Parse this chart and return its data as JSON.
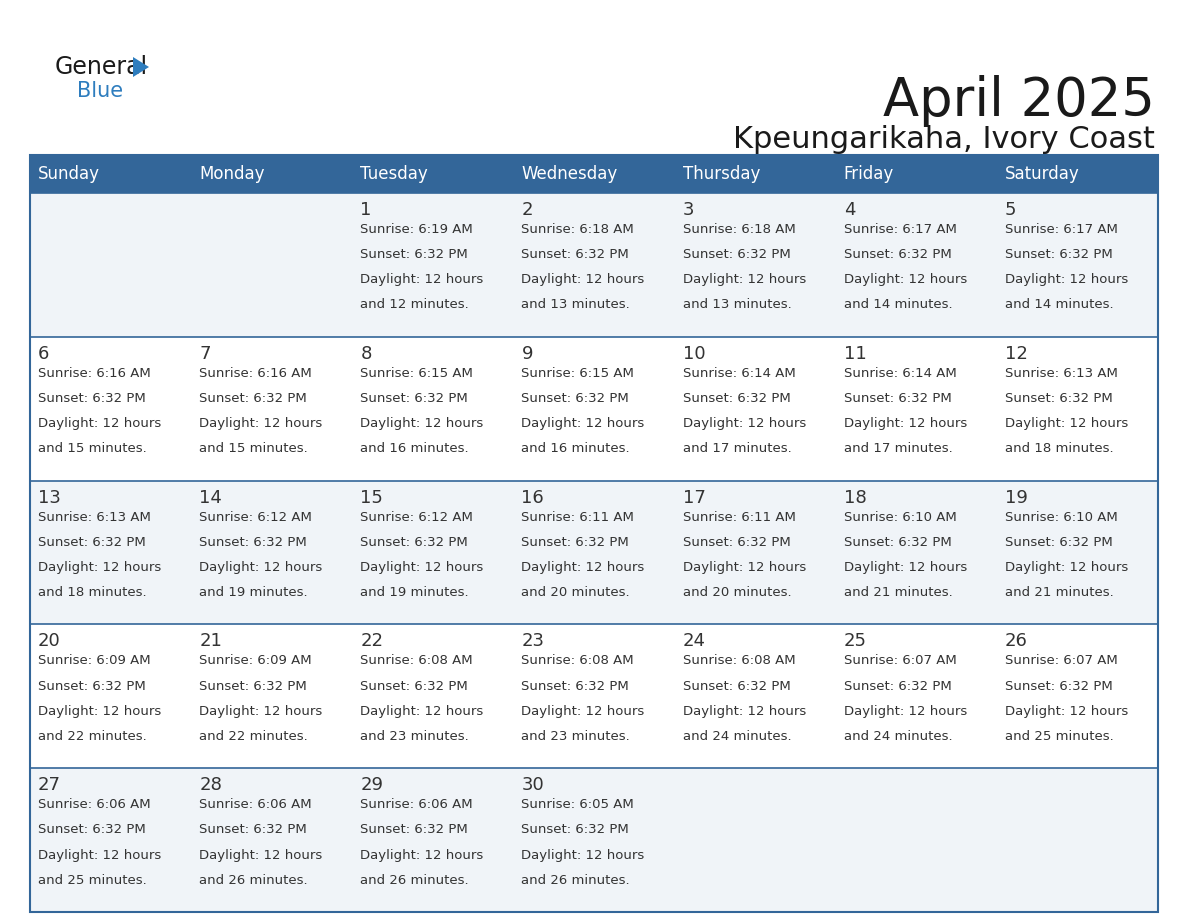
{
  "title": "April 2025",
  "subtitle": "Kpeungarikaha, Ivory Coast",
  "header_bg": "#336699",
  "header_text": "#FFFFFF",
  "day_names": [
    "Sunday",
    "Monday",
    "Tuesday",
    "Wednesday",
    "Thursday",
    "Friday",
    "Saturday"
  ],
  "cell_bg_odd": "#F0F4F8",
  "cell_bg_even": "#FFFFFF",
  "grid_line_color": "#336699",
  "text_color": "#333333",
  "title_color": "#1a1a1a",
  "logo_text_color": "#1a1a1a",
  "logo_blue_color": "#2E7DBE",
  "calendar": [
    [
      null,
      null,
      {
        "day": 1,
        "sunrise": "6:19 AM",
        "sunset": "6:32 PM",
        "daylight": "12 hours and 12 minutes."
      },
      {
        "day": 2,
        "sunrise": "6:18 AM",
        "sunset": "6:32 PM",
        "daylight": "12 hours and 13 minutes."
      },
      {
        "day": 3,
        "sunrise": "6:18 AM",
        "sunset": "6:32 PM",
        "daylight": "12 hours and 13 minutes."
      },
      {
        "day": 4,
        "sunrise": "6:17 AM",
        "sunset": "6:32 PM",
        "daylight": "12 hours and 14 minutes."
      },
      {
        "day": 5,
        "sunrise": "6:17 AM",
        "sunset": "6:32 PM",
        "daylight": "12 hours and 14 minutes."
      }
    ],
    [
      {
        "day": 6,
        "sunrise": "6:16 AM",
        "sunset": "6:32 PM",
        "daylight": "12 hours and 15 minutes."
      },
      {
        "day": 7,
        "sunrise": "6:16 AM",
        "sunset": "6:32 PM",
        "daylight": "12 hours and 15 minutes."
      },
      {
        "day": 8,
        "sunrise": "6:15 AM",
        "sunset": "6:32 PM",
        "daylight": "12 hours and 16 minutes."
      },
      {
        "day": 9,
        "sunrise": "6:15 AM",
        "sunset": "6:32 PM",
        "daylight": "12 hours and 16 minutes."
      },
      {
        "day": 10,
        "sunrise": "6:14 AM",
        "sunset": "6:32 PM",
        "daylight": "12 hours and 17 minutes."
      },
      {
        "day": 11,
        "sunrise": "6:14 AM",
        "sunset": "6:32 PM",
        "daylight": "12 hours and 17 minutes."
      },
      {
        "day": 12,
        "sunrise": "6:13 AM",
        "sunset": "6:32 PM",
        "daylight": "12 hours and 18 minutes."
      }
    ],
    [
      {
        "day": 13,
        "sunrise": "6:13 AM",
        "sunset": "6:32 PM",
        "daylight": "12 hours and 18 minutes."
      },
      {
        "day": 14,
        "sunrise": "6:12 AM",
        "sunset": "6:32 PM",
        "daylight": "12 hours and 19 minutes."
      },
      {
        "day": 15,
        "sunrise": "6:12 AM",
        "sunset": "6:32 PM",
        "daylight": "12 hours and 19 minutes."
      },
      {
        "day": 16,
        "sunrise": "6:11 AM",
        "sunset": "6:32 PM",
        "daylight": "12 hours and 20 minutes."
      },
      {
        "day": 17,
        "sunrise": "6:11 AM",
        "sunset": "6:32 PM",
        "daylight": "12 hours and 20 minutes."
      },
      {
        "day": 18,
        "sunrise": "6:10 AM",
        "sunset": "6:32 PM",
        "daylight": "12 hours and 21 minutes."
      },
      {
        "day": 19,
        "sunrise": "6:10 AM",
        "sunset": "6:32 PM",
        "daylight": "12 hours and 21 minutes."
      }
    ],
    [
      {
        "day": 20,
        "sunrise": "6:09 AM",
        "sunset": "6:32 PM",
        "daylight": "12 hours and 22 minutes."
      },
      {
        "day": 21,
        "sunrise": "6:09 AM",
        "sunset": "6:32 PM",
        "daylight": "12 hours and 22 minutes."
      },
      {
        "day": 22,
        "sunrise": "6:08 AM",
        "sunset": "6:32 PM",
        "daylight": "12 hours and 23 minutes."
      },
      {
        "day": 23,
        "sunrise": "6:08 AM",
        "sunset": "6:32 PM",
        "daylight": "12 hours and 23 minutes."
      },
      {
        "day": 24,
        "sunrise": "6:08 AM",
        "sunset": "6:32 PM",
        "daylight": "12 hours and 24 minutes."
      },
      {
        "day": 25,
        "sunrise": "6:07 AM",
        "sunset": "6:32 PM",
        "daylight": "12 hours and 24 minutes."
      },
      {
        "day": 26,
        "sunrise": "6:07 AM",
        "sunset": "6:32 PM",
        "daylight": "12 hours and 25 minutes."
      }
    ],
    [
      {
        "day": 27,
        "sunrise": "6:06 AM",
        "sunset": "6:32 PM",
        "daylight": "12 hours and 25 minutes."
      },
      {
        "day": 28,
        "sunrise": "6:06 AM",
        "sunset": "6:32 PM",
        "daylight": "12 hours and 26 minutes."
      },
      {
        "day": 29,
        "sunrise": "6:06 AM",
        "sunset": "6:32 PM",
        "daylight": "12 hours and 26 minutes."
      },
      {
        "day": 30,
        "sunrise": "6:05 AM",
        "sunset": "6:32 PM",
        "daylight": "12 hours and 26 minutes."
      },
      null,
      null,
      null
    ]
  ]
}
